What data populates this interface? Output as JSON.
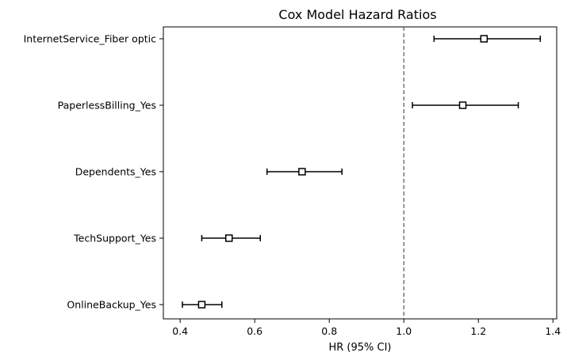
{
  "chart_data": {
    "type": "scatter",
    "title": "Cox Model Hazard Ratios",
    "xlabel": "HR (95% CI)",
    "ylabel": "",
    "xlim": [
      0.355,
      1.41
    ],
    "x_ticks": [
      0.4,
      0.6,
      0.8,
      1.0,
      1.2,
      1.4
    ],
    "x_tick_labels": [
      "0.4",
      "0.6",
      "0.8",
      "1.0",
      "1.2",
      "1.4"
    ],
    "reference_line": 1.0,
    "grid": false,
    "legend": "none",
    "categories": [
      "InternetService_Fiber optic",
      "PaperlessBilling_Yes",
      "Dependents_Yes",
      "TechSupport_Yes",
      "OnlineBackup_Yes"
    ],
    "hr": [
      1.215,
      1.158,
      0.727,
      0.531,
      0.458
    ],
    "ci_lower": [
      1.081,
      1.023,
      0.633,
      0.458,
      0.406
    ],
    "ci_upper": [
      1.366,
      1.307,
      0.834,
      0.615,
      0.512
    ],
    "colors": {
      "marker_edge": "#000000",
      "marker_face": "#ffffff",
      "reference_line": "#555555",
      "axes": "#000000"
    }
  }
}
